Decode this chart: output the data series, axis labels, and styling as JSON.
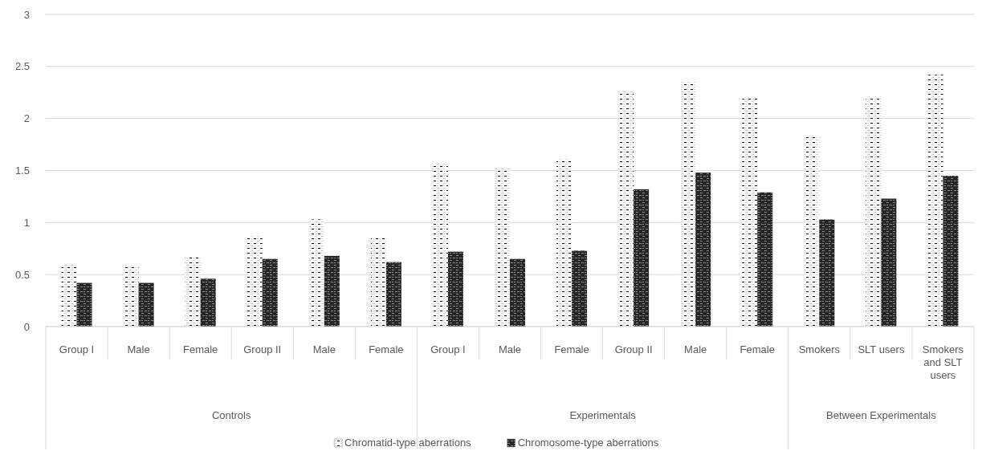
{
  "chart_data": {
    "type": "bar",
    "categories": [
      "Group I",
      "Male",
      "Female",
      "Group II",
      "Male",
      "Female",
      "Group I",
      "Male",
      "Female",
      "Group II",
      "Male",
      "Female",
      "Smokers",
      "SLT users",
      "Smokers and SLT users"
    ],
    "series": [
      {
        "name": "Chromatid-type aberrations",
        "color": "#d0d0d0",
        "values": [
          0.6,
          0.58,
          0.67,
          0.87,
          1.03,
          0.85,
          1.57,
          1.52,
          1.61,
          2.27,
          2.36,
          2.19,
          1.82,
          2.21,
          2.42
        ]
      },
      {
        "name": "Chromosome-type aberrations",
        "color": "#262626",
        "values": [
          0.42,
          0.42,
          0.46,
          0.65,
          0.68,
          0.62,
          0.72,
          0.65,
          0.73,
          1.32,
          1.48,
          1.29,
          1.03,
          1.23,
          1.45
        ]
      }
    ],
    "annotations": [
      "Controls",
      "Experimentals",
      "Between Experimentals"
    ],
    "ylim": [
      0,
      3
    ],
    "yticks": [
      0,
      0.5,
      1,
      1.5,
      2,
      2.5,
      3
    ],
    "grid": "y",
    "legend": "bottom"
  }
}
